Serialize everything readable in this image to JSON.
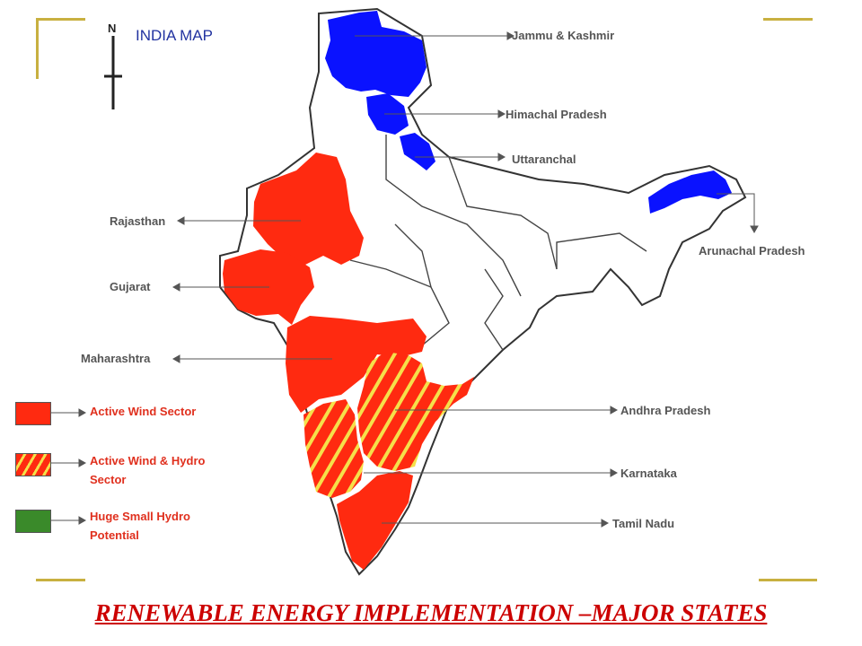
{
  "map": {
    "title": "INDIA MAP",
    "north_label": "N",
    "colors": {
      "active_wind": "#ff2a10",
      "hydro_states": "#0a12ff",
      "hatch": "#f5e04a",
      "huge_small_hydro": "#3a8a2a",
      "outline": "#333333"
    }
  },
  "state_labels": {
    "jammu_kashmir": "Jammu & Kashmir",
    "himachal_pradesh": "Himachal Pradesh",
    "uttaranchal": "Uttaranchal",
    "arunachal_pradesh": "Arunachal Pradesh",
    "rajasthan": "Rajasthan",
    "gujarat": "Gujarat",
    "maharashtra": "Maharashtra",
    "andhra_pradesh": "Andhra Pradesh",
    "karnataka": "Karnataka",
    "tamil_nadu": "Tamil Nadu"
  },
  "legend": {
    "active_wind": "Active Wind Sector",
    "wind_hydro_line1": "Active Wind & Hydro",
    "wind_hydro_line2": "Sector",
    "small_hydro_line1": "Huge Small Hydro",
    "small_hydro_line2": "Potential"
  },
  "footer": {
    "title": "RENEWABLE ENERGY IMPLEMENTATION –MAJOR STATES"
  }
}
